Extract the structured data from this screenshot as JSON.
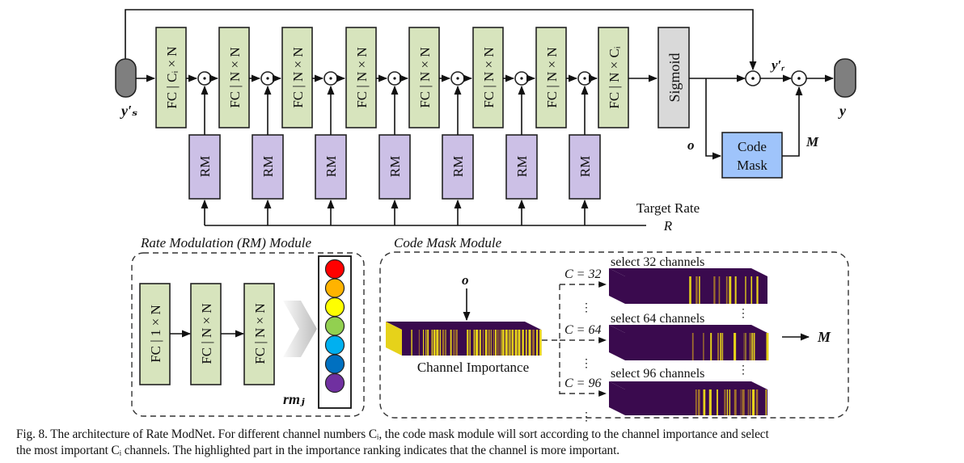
{
  "main_diagram": {
    "input_label": "y′ₛ",
    "output_label": "y",
    "fc_labels": [
      "FC | Cᵢ × N",
      "FC | N × N",
      "FC | N × N",
      "FC | N × N",
      "FC | N × N",
      "FC | N × N",
      "FC | N × N",
      "FC | N × Cᵢ"
    ],
    "sigmoid_label": "Sigmoid",
    "rm_label": "RM",
    "product_symbol": "⊙",
    "yr_label": "y′ᵣ",
    "o_label": "o",
    "m_label": "M",
    "code_mask_line1": "Code",
    "code_mask_line2": "Mask",
    "target_rate_label": "Target Rate",
    "r_label": "R",
    "colors": {
      "fc": "#d7e4bd",
      "rm": "#ccc0e6",
      "sigmoid": "#d9d9d9",
      "code_mask": "#9fc4fb",
      "io": "#7f7f7f"
    }
  },
  "rm_module": {
    "title": "Rate Modulation (RM) Module",
    "fc_labels": [
      "FC | 1 × N",
      "FC | N × N",
      "FC | N × N"
    ],
    "output_label": "rmⱼ",
    "output_colors": [
      "#ff0000",
      "#ffb300",
      "#ffff00",
      "#92d050",
      "#00b0f0",
      "#0070c0",
      "#7030a0"
    ]
  },
  "code_mask_module": {
    "title": "Code Mask Module",
    "input_label": "o",
    "channel_importance_label": "Channel Importance",
    "branches": [
      {
        "c_label": "C = 32",
        "select_label": "select 32 channels",
        "channels": 32
      },
      {
        "c_label": "C = 64",
        "select_label": "select 64 channels",
        "channels": 64
      },
      {
        "c_label": "C = 96",
        "select_label": "select 96 channels",
        "channels": 96
      }
    ],
    "ellipsis": "⋮",
    "output_label": "M",
    "colors": {
      "low": "#3a0a4e",
      "high": "#e6d21a"
    }
  },
  "caption": {
    "line1": "Fig. 8.  The architecture of Rate ModNet. For different channel numbers Cᵢ, the code mask module will sort according to the channel importance and select",
    "line2": "the most important Cᵢ channels. The highlighted part in the importance ranking indicates that the channel is more important."
  }
}
